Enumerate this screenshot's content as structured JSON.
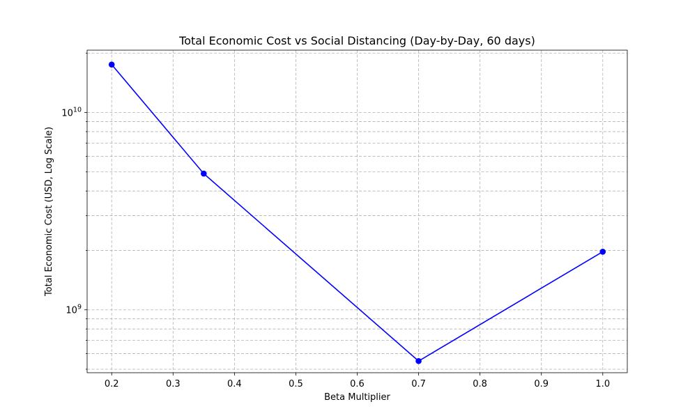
{
  "chart_data": {
    "type": "line",
    "title": "Total Economic Cost vs Social Distancing (Day-by-Day, 60 days)",
    "xlabel": "Beta Multiplier",
    "ylabel": "Total Economic Cost (USD, Log Scale)",
    "x_ticks": [
      "0.2",
      "0.3",
      "0.4",
      "0.5",
      "0.6",
      "0.7",
      "0.8",
      "0.9",
      "1.0"
    ],
    "y_major_ticks": [
      {
        "value": 1000000000,
        "base": "10",
        "exp": "9"
      },
      {
        "value": 10000000000,
        "base": "10",
        "exp": "10"
      }
    ],
    "y_scale": "log",
    "xlim": [
      0.16,
      1.04
    ],
    "ylim": [
      480000000,
      20700000000
    ],
    "grid": true,
    "series": [
      {
        "color": "#0000ff",
        "marker": "circle",
        "points": [
          {
            "x": 0.2,
            "y": 17500000000
          },
          {
            "x": 0.35,
            "y": 4900000000
          },
          {
            "x": 0.7,
            "y": 550000000
          },
          {
            "x": 1.0,
            "y": 1970000000
          }
        ]
      }
    ]
  }
}
